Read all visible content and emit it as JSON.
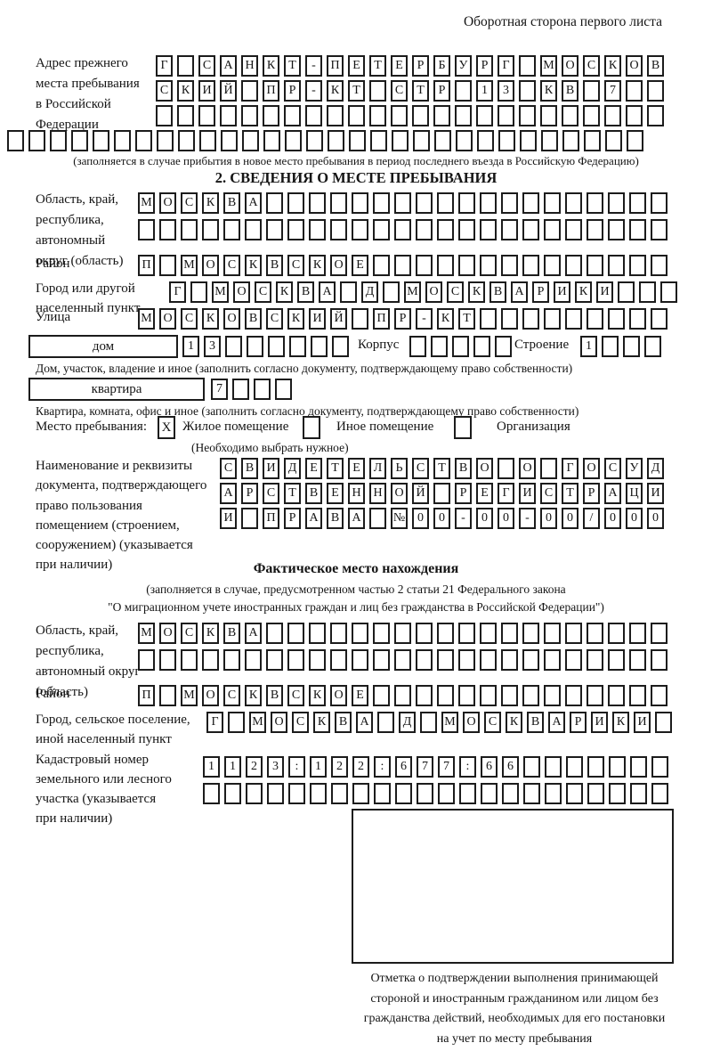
{
  "header": {
    "note": "Оборотная сторона первого листа"
  },
  "prev_address": {
    "label_lines": [
      "Адрес прежнего",
      "места пребывания",
      "в Российской",
      "Федерации"
    ],
    "rows": [
      {
        "cells": "Г САНКТ-ПЕТЕРБУРГ МОСКОВ",
        "len": 24
      },
      {
        "cells": "СКИЙ ПР-КТ СТР 13 КВ 7",
        "len": 24
      },
      {
        "cells": "",
        "len": 24
      },
      {
        "cells": "",
        "len": 30
      }
    ],
    "note": "(заполняется в случае прибытия в новое место пребывания в период последнего въезда в Российскую Федерацию)"
  },
  "section2": {
    "title": "2. СВЕДЕНИЯ О МЕСТЕ ПРЕБЫВАНИЯ",
    "region": {
      "label_lines": [
        "Область, край,",
        "республика,",
        "автономный",
        "округ (область)"
      ],
      "rows": [
        {
          "cells": "МОСКВА",
          "len": 25
        },
        {
          "cells": "",
          "len": 25
        }
      ]
    },
    "district": {
      "label": "Район",
      "row": {
        "cells": "П МОСКВСКОЕ",
        "len": 25
      }
    },
    "city": {
      "label_lines": [
        "Город или другой",
        "населенный пункт"
      ],
      "row": {
        "cells": "Г МОСКВА Д МОСКВАРИКИ",
        "len": 24
      }
    },
    "street": {
      "label": "Улица",
      "row": {
        "cells": "МОСКОВСКИЙ ПР-КТ",
        "len": 25
      }
    },
    "house": {
      "box_label": "дом",
      "number_row": {
        "cells": "13",
        "len": 8
      },
      "korpus_label": "Корпус",
      "korpus_row": {
        "cells": "",
        "len": 5
      },
      "stroenie_label": "Строение",
      "stroenie_row": {
        "cells": "1",
        "len": 4
      },
      "note": "Дом, участок, владение и иное (заполнить согласно документу, подтверждающему право собственности)"
    },
    "apartment": {
      "box_label": "квартира",
      "number_row": {
        "cells": "7",
        "len": 4
      },
      "note": "Квартира, комната, офис и иное (заполнить согласно документу, подтверждающему право собственности)"
    },
    "stay_type": {
      "label": "Место пребывания:",
      "options": [
        {
          "label": "Жилое помещение",
          "checked": "X"
        },
        {
          "label": "Иное помещение",
          "checked": ""
        },
        {
          "label": "Организация",
          "checked": ""
        }
      ],
      "note": "(Необходимо выбрать нужное)"
    },
    "document": {
      "label_lines": [
        "Наименование и реквизиты",
        "документа, подтверждающего",
        "право пользования",
        "помещением (строением,",
        "сооружением) (указывается",
        "при наличии)"
      ],
      "rows": [
        {
          "cells": "СВИДЕТЕЛЬСТВО О ГОСУД",
          "len": 21
        },
        {
          "cells": "АРСТВЕННОЙ РЕГИСТРАЦИ",
          "len": 21
        },
        {
          "cells": "И ПРАВА №00-00-00/000",
          "len": 21
        }
      ]
    }
  },
  "actual_location": {
    "title": "Фактическое место нахождения",
    "note_lines": [
      "(заполняется в случае, предусмотренном частью 2 статьи 21 Федерального закона",
      "\"О миграционном учете иностранных граждан и лиц без гражданства в Российской Федерации\")"
    ],
    "region": {
      "label_lines": [
        "Область, край,",
        "республика,",
        "автономный округ",
        "(область)"
      ],
      "rows": [
        {
          "cells": "МОСКВА",
          "len": 25
        },
        {
          "cells": "",
          "len": 25
        }
      ]
    },
    "district": {
      "label": "Район",
      "row": {
        "cells": "П МОСКВСКОЕ",
        "len": 25
      }
    },
    "city": {
      "label_lines": [
        "Город, сельское поселение,",
        "иной населенный пункт"
      ],
      "row": {
        "cells": "Г МОСКВА Д МОСКВАРИКИ",
        "len": 22
      }
    },
    "cadastre": {
      "label_lines": [
        "Кадастровый номер",
        "земельного или лесного",
        "участка (указывается",
        "при наличии)"
      ],
      "rows": [
        {
          "cells": "1123:122:677:66",
          "len": 22
        },
        {
          "cells": "",
          "len": 22
        }
      ]
    },
    "mark_caption_lines": [
      "Отметка о подтверждении выполнения принимающей",
      "стороной и иностранным гражданином или лицом без",
      "гражданства действий, необходимых для его постановки",
      "на учет по месту пребывания"
    ]
  }
}
